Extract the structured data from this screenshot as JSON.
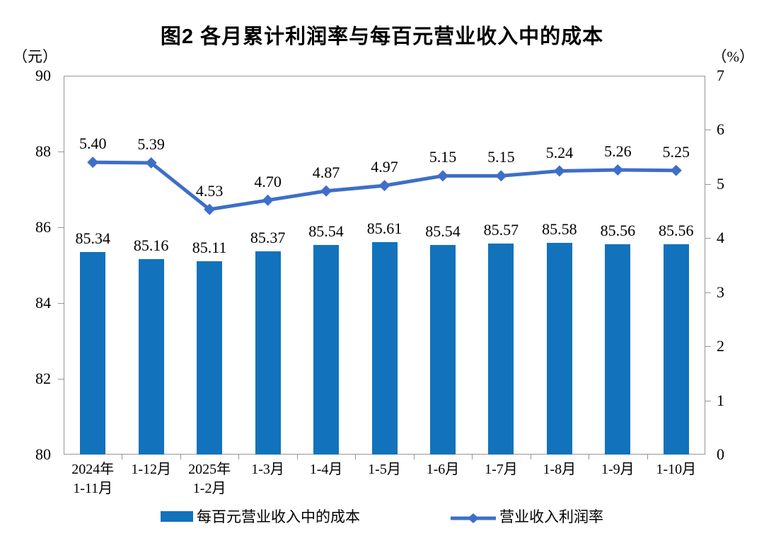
{
  "title": "图2 各月累计利润率与每百元营业收入中的成本",
  "left_axis": {
    "unit": "（元）",
    "ticks": [
      90,
      88,
      86,
      84,
      82,
      80
    ],
    "min": 80,
    "max": 90
  },
  "right_axis": {
    "unit": "（%）",
    "ticks": [
      7,
      6,
      5,
      4,
      3,
      2,
      1,
      0
    ],
    "min": 0,
    "max": 7
  },
  "legend": [
    {
      "label": "每百元营业收入中的成本",
      "marker": "bar"
    },
    {
      "label": "营业收入利润率",
      "marker": "line-diamond"
    }
  ],
  "colors": {
    "bar": "#1272BC",
    "line": "#3E6FC7",
    "axis_border": "#969696",
    "text": "#000000"
  },
  "chart_data": {
    "type": "bar+line",
    "categories": [
      [
        "2024年",
        "1-11月"
      ],
      [
        "1-12月"
      ],
      [
        "2025年",
        "1-2月"
      ],
      [
        "1-3月"
      ],
      [
        "1-4月"
      ],
      [
        "1-5月"
      ],
      [
        "1-6月"
      ],
      [
        "1-7月"
      ],
      [
        "1-8月"
      ],
      [
        "1-9月"
      ],
      [
        "1-10月"
      ]
    ],
    "series": [
      {
        "name": "每百元营业收入中的成本",
        "type": "bar",
        "axis": "left",
        "values": [
          85.34,
          85.16,
          85.11,
          85.37,
          85.54,
          85.61,
          85.54,
          85.57,
          85.58,
          85.56,
          85.56
        ]
      },
      {
        "name": "营业收入利润率",
        "type": "line",
        "axis": "right",
        "values": [
          5.4,
          5.39,
          4.53,
          4.7,
          4.87,
          4.97,
          5.15,
          5.15,
          5.24,
          5.26,
          5.25
        ]
      }
    ],
    "left_ylim": [
      80,
      90
    ],
    "right_ylim": [
      0,
      7
    ],
    "grid": false,
    "legend_position": "bottom"
  }
}
